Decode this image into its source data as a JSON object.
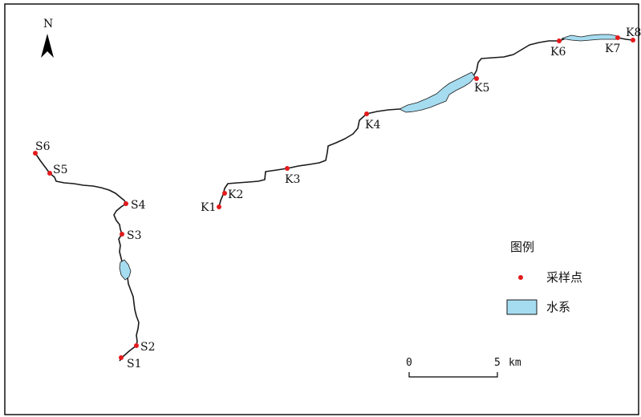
{
  "north_arrow": {
    "label": "N"
  },
  "colors": {
    "sample_point": "#e41a1c",
    "water": "#a6dcf0",
    "river_line": "#1a1a1a",
    "frame": "#000000"
  },
  "sample_points": {
    "s_series": [
      "S1",
      "S2",
      "S3",
      "S4",
      "S5",
      "S6"
    ],
    "k_series": [
      "K1",
      "K2",
      "K3",
      "K4",
      "K5",
      "K6",
      "K7",
      "K8"
    ]
  },
  "legend": {
    "title": "图例",
    "items": [
      {
        "label": "采样点",
        "symbol": "red-dot"
      },
      {
        "label": "水系",
        "symbol": "water-swatch"
      }
    ]
  },
  "scale_bar": {
    "start_label": "0",
    "end_label": "5",
    "unit": "km"
  }
}
